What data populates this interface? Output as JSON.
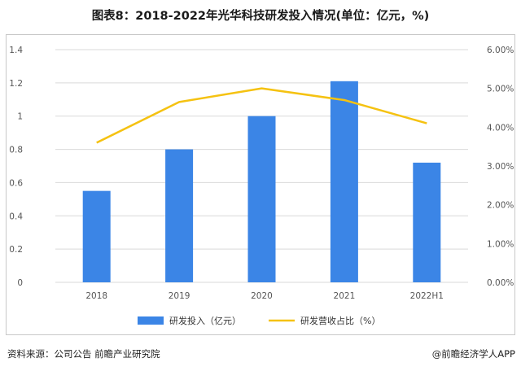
{
  "title": "图表8：2018-2022年光华科技研发投入情况(单位：亿元，%)",
  "source": "资料来源：公司公告 前瞻产业研究院",
  "credit": "@前瞻经济学人APP",
  "colors": {
    "bar": "#3b85e6",
    "line": "#f5c211",
    "grid": "#d9d9d9"
  },
  "chart_data": {
    "type": "bar+line",
    "title": "图表8：2018-2022年光华科技研发投入情况(单位：亿元，%)",
    "categories": [
      "2018",
      "2019",
      "2020",
      "2021",
      "2022H1"
    ],
    "series": [
      {
        "name": "研发投入（亿元）",
        "type": "bar",
        "axis": "left",
        "values": [
          0.55,
          0.8,
          1.0,
          1.21,
          0.72
        ]
      },
      {
        "name": "研发营收占比（%）",
        "type": "line",
        "axis": "right",
        "values": [
          3.6,
          4.65,
          5.0,
          4.7,
          4.1
        ]
      }
    ],
    "left_axis": {
      "min": 0,
      "max": 1.4,
      "step": 0.2,
      "tick_labels": [
        "0",
        "0.2",
        "0.4",
        "0.6",
        "0.8",
        "1",
        "1.2",
        "1.4"
      ]
    },
    "right_axis": {
      "min": 0,
      "max": 6,
      "step": 1,
      "tick_labels": [
        "0.00%",
        "1.00%",
        "2.00%",
        "3.00%",
        "4.00%",
        "5.00%",
        "6.00%"
      ]
    },
    "legend": [
      "研发投入（亿元）",
      "研发营收占比（%）"
    ],
    "legend_position": "bottom",
    "grid": true
  }
}
